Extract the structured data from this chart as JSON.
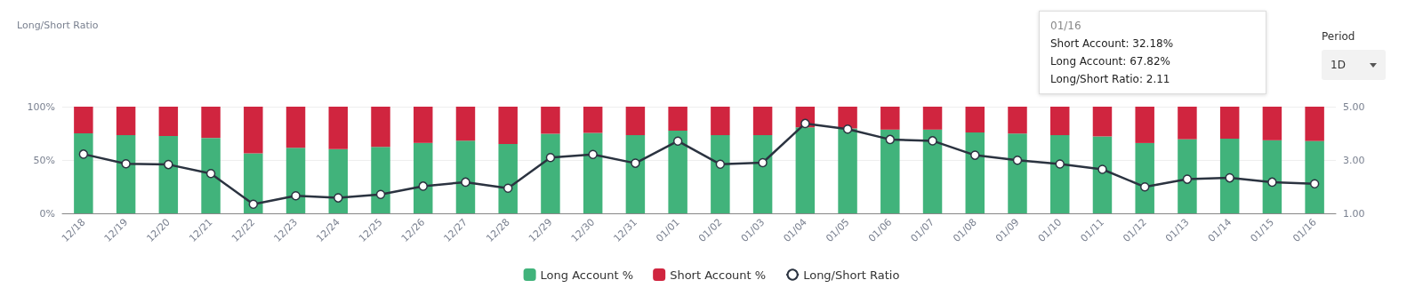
{
  "chart_data": {
    "type": "bar",
    "title": "Long/Short Ratio",
    "categories": [
      "12/18",
      "12/19",
      "12/20",
      "12/21",
      "12/22",
      "12/23",
      "12/24",
      "12/25",
      "12/26",
      "12/27",
      "12/28",
      "12/29",
      "12/30",
      "12/31",
      "01/01",
      "01/02",
      "01/03",
      "01/04",
      "01/05",
      "01/06",
      "01/07",
      "01/08",
      "01/09",
      "01/10",
      "01/11",
      "01/12",
      "01/13",
      "01/14",
      "01/15",
      "01/16"
    ],
    "stacked": true,
    "series": [
      {
        "name": "Long Account %",
        "color": "#41b37b",
        "values": [
          75.1,
          73.3,
          72.5,
          70.7,
          56.3,
          61.5,
          60.2,
          62.3,
          66.0,
          68.1,
          64.9,
          74.6,
          75.4,
          73.3,
          77.5,
          73.3,
          73.3,
          80.6,
          79.6,
          78.5,
          78.5,
          75.8,
          74.8,
          73.3,
          72.1,
          65.9,
          69.5,
          70.0,
          68.5,
          67.82
        ]
      },
      {
        "name": "Short Account %",
        "color": "#d0253f",
        "values": [
          24.9,
          26.7,
          27.5,
          29.3,
          43.7,
          38.5,
          39.8,
          37.7,
          34.0,
          31.9,
          35.1,
          25.4,
          24.6,
          26.7,
          22.5,
          26.7,
          26.7,
          19.4,
          20.4,
          21.5,
          21.5,
          24.2,
          25.2,
          26.7,
          27.9,
          34.1,
          30.5,
          30.0,
          31.5,
          32.18
        ]
      },
      {
        "name": "Long/Short Ratio",
        "type": "line",
        "axis": "y2",
        "color": "#2b3340",
        "marker": "circle",
        "values": [
          3.22,
          2.86,
          2.83,
          2.49,
          1.34,
          1.66,
          1.58,
          1.71,
          2.02,
          2.17,
          1.94,
          3.09,
          3.21,
          2.88,
          3.71,
          2.84,
          2.9,
          4.37,
          4.16,
          3.77,
          3.72,
          3.18,
          2.99,
          2.85,
          2.65,
          1.99,
          2.28,
          2.33,
          2.17,
          2.11
        ]
      }
    ],
    "ylim": [
      0,
      100
    ],
    "yticks": [
      {
        "value": 0,
        "label": "0%"
      },
      {
        "value": 50,
        "label": "50%"
      },
      {
        "value": 100,
        "label": "100%"
      }
    ],
    "y2lim": [
      1,
      5
    ],
    "y2ticks": [
      {
        "value": 1,
        "label": "1.00"
      },
      {
        "value": 3,
        "label": "3.00"
      },
      {
        "value": 5,
        "label": "5.00"
      }
    ],
    "grid": "y",
    "legend": "bottom",
    "annotations": [
      "01/16",
      "Short Account: 32.18%",
      "Long Account: 67.82%",
      "Long/Short Ratio: 2.11",
      "Period",
      "1D"
    ]
  }
}
